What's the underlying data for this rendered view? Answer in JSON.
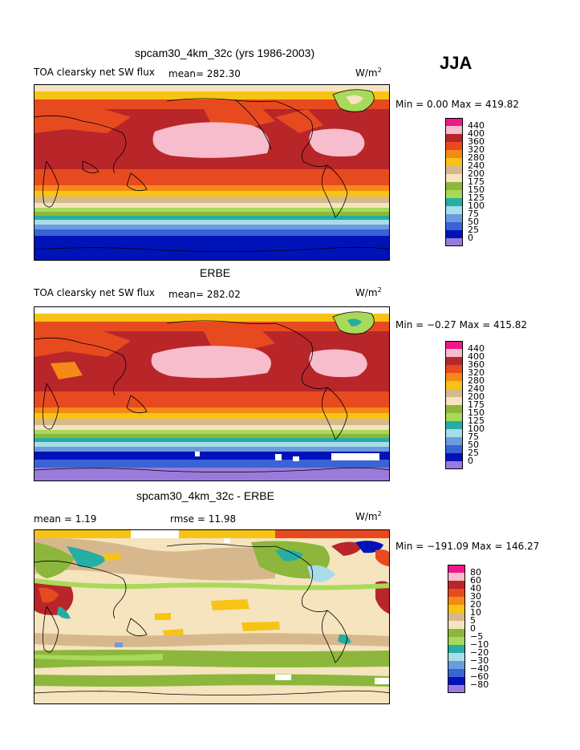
{
  "season": "JJA",
  "units_base": "W/m",
  "units_exp": "2",
  "panels": [
    {
      "title": "spcam30_4km_32c (yrs 1986-2003)",
      "variable": "TOA clearsky net SW flux",
      "mean_label": "mean= 282.30",
      "minmax": "Min =   0.00 Max = 419.82",
      "levels": [
        "440",
        "400",
        "360",
        "320",
        "280",
        "240",
        "200",
        "175",
        "150",
        "125",
        "100",
        "75",
        "50",
        "25",
        "0"
      ]
    },
    {
      "title": "ERBE",
      "variable": "TOA clearsky net SW flux",
      "mean_label": "mean= 282.02",
      "minmax": "Min = −0.27 Max = 415.82",
      "levels": [
        "440",
        "400",
        "360",
        "320",
        "280",
        "240",
        "200",
        "175",
        "150",
        "125",
        "100",
        "75",
        "50",
        "25",
        "0"
      ]
    },
    {
      "title": "spcam30_4km_32c - ERBE",
      "mean_label": "mean =   1.19",
      "rmse_label": "rmse =  11.98",
      "minmax": "Min = −191.09 Max = 146.27",
      "levels": [
        "80",
        "60",
        "40",
        "30",
        "20",
        "10",
        "5",
        "0",
        "−5",
        "−10",
        "−20",
        "−30",
        "−40",
        "−60",
        "−80"
      ]
    }
  ],
  "colors": {
    "abs_scale": [
      "#f0178a",
      "#f7bdcc",
      "#b8262a",
      "#e84a20",
      "#f58a17",
      "#f7c415",
      "#d7b88d",
      "#f5e4be",
      "#8cb73c",
      "#a9d95a",
      "#26ada4",
      "#a8dce9",
      "#6b9bdd",
      "#3a63d6",
      "#0013b8",
      "#9a7bdb"
    ],
    "diff_scale": [
      "#f0178a",
      "#f7bdcc",
      "#b8262a",
      "#e84a20",
      "#f58a17",
      "#f7c415",
      "#d7b88d",
      "#f5e4be",
      "#8cb73c",
      "#a9d95a",
      "#26ada4",
      "#a8dce9",
      "#6b9bdd",
      "#3a63d6",
      "#0013b8",
      "#9a7bdb"
    ]
  }
}
